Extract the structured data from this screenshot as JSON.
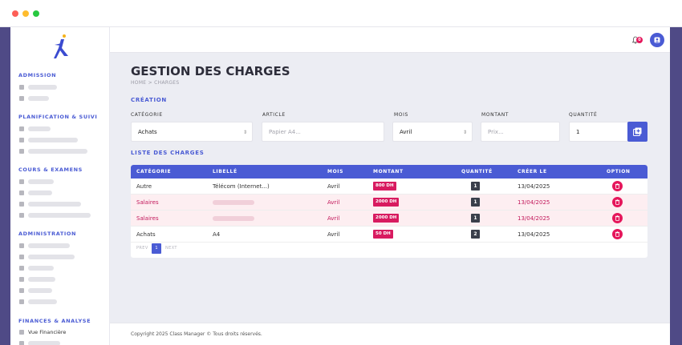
{
  "colors": {
    "accent": "#4a5bd4",
    "danger": "#d81b60",
    "frame": "#4f4a86"
  },
  "sidebar": {
    "sections": [
      {
        "title": "ADMISSION",
        "items": 2
      },
      {
        "title": "PLANIFICATION & SUIVI",
        "items": 3
      },
      {
        "title": "COURS & EXAMENS",
        "items": 4
      },
      {
        "title": "ADMINISTRATION",
        "items": 6
      },
      {
        "title": "FINANCES & ANALYSE",
        "items": 2
      }
    ],
    "finance_item": "Vue Financière"
  },
  "header": {
    "notification_count": "0",
    "bell_icon": "bell-icon",
    "avatar_icon": "user-icon"
  },
  "page": {
    "title": "GESTION DES CHARGES",
    "breadcrumb": "HOME > CHARGES"
  },
  "form": {
    "section_title": "CRÉATION",
    "category": {
      "label": "CATÉGORIE",
      "value": "Achats"
    },
    "article": {
      "label": "ARTICLE",
      "placeholder": "Papier A4..."
    },
    "month": {
      "label": "MOIS",
      "value": "Avril"
    },
    "amount": {
      "label": "MONTANT",
      "placeholder": "Prix..."
    },
    "quantity": {
      "label": "QUANTITÉ",
      "value": "1"
    }
  },
  "list": {
    "section_title": "LISTE DES CHARGES",
    "columns": {
      "category": "CATÉGORIE",
      "label": "LIBELLÉ",
      "month": "MOIS",
      "amount": "MONTANT",
      "quantity": "QUANTITÉ",
      "created": "CRÉER LE",
      "option": "OPTION"
    },
    "rows": [
      {
        "category": "Autre",
        "label": "Télécom (Internet...)",
        "month": "Avril",
        "amount": "800 DH",
        "quantity": "1",
        "created": "13/04/2025"
      },
      {
        "category": "Salaires",
        "label": "",
        "month": "Avril",
        "amount": "2000 DH",
        "quantity": "1",
        "created": "13/04/2025"
      },
      {
        "category": "Salaires",
        "label": "",
        "month": "Avril",
        "amount": "2000 DH",
        "quantity": "1",
        "created": "13/04/2025"
      },
      {
        "category": "Achats",
        "label": "A4",
        "month": "Avril",
        "amount": "50 DH",
        "quantity": "2",
        "created": "13/04/2025"
      }
    ],
    "pagination": {
      "prev": "PREV",
      "current": "1",
      "next": "NEXT"
    }
  },
  "footer": {
    "copyright": "Copyright 2025 Class Manager © Tous droits réservés."
  }
}
